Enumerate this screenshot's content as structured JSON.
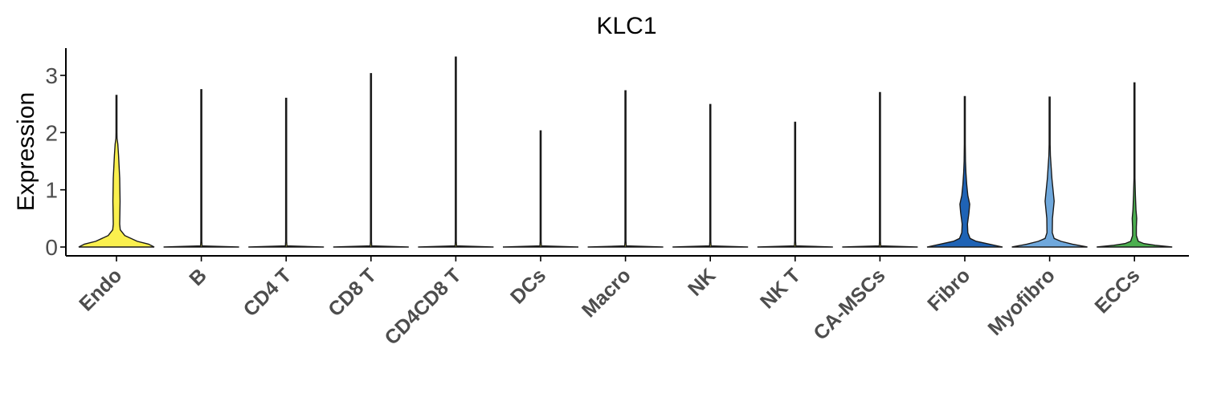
{
  "chart_data": {
    "type": "violin",
    "title": "KLC1",
    "xlabel": "",
    "ylabel": "Expression",
    "ylim": [
      -0.2,
      3.5
    ],
    "yticks": [
      0,
      1,
      2,
      3
    ],
    "grid": false,
    "legend": "none",
    "categories": [
      "Endo",
      "B",
      "CD4 T",
      "CD8 T",
      "CD4CD8 T",
      "DCs",
      "Macro",
      "NK",
      "NK T",
      "CA-MSCs",
      "Fibro",
      "Myofibro",
      "ECCs"
    ],
    "series": [
      {
        "category": "Endo",
        "color": "#FAF04E",
        "max": 2.65,
        "density": [
          [
            0,
            1.0
          ],
          [
            0.05,
            0.85
          ],
          [
            0.1,
            0.55
          ],
          [
            0.2,
            0.22
          ],
          [
            0.3,
            0.1
          ],
          [
            0.4,
            0.085
          ],
          [
            0.6,
            0.09
          ],
          [
            0.8,
            0.095
          ],
          [
            1.0,
            0.09
          ],
          [
            1.2,
            0.085
          ],
          [
            1.4,
            0.07
          ],
          [
            1.6,
            0.055
          ],
          [
            1.8,
            0.035
          ],
          [
            1.9,
            0.015
          ],
          [
            2.0,
            0.008
          ],
          [
            2.3,
            0.004
          ],
          [
            2.65,
            0
          ]
        ]
      },
      {
        "category": "B",
        "color": "#FAF04E",
        "max": 2.75,
        "density": [
          [
            0,
            1.0
          ],
          [
            0.02,
            0.02
          ],
          [
            0.1,
            0.004
          ],
          [
            2.75,
            0.002
          ]
        ]
      },
      {
        "category": "CD4 T",
        "color": "#FAF04E",
        "max": 2.6,
        "density": [
          [
            0,
            1.0
          ],
          [
            0.02,
            0.02
          ],
          [
            0.1,
            0.004
          ],
          [
            2.6,
            0.002
          ]
        ]
      },
      {
        "category": "CD8 T",
        "color": "#FAF04E",
        "max": 3.03,
        "density": [
          [
            0,
            1.0
          ],
          [
            0.02,
            0.02
          ],
          [
            0.1,
            0.004
          ],
          [
            3.03,
            0.002
          ]
        ]
      },
      {
        "category": "CD4CD8 T",
        "color": "#FAF04E",
        "max": 3.32,
        "density": [
          [
            0,
            1.0
          ],
          [
            0.02,
            0.02
          ],
          [
            0.1,
            0.004
          ],
          [
            3.32,
            0.002
          ]
        ]
      },
      {
        "category": "DCs",
        "color": "#FAF04E",
        "max": 2.03,
        "density": [
          [
            0,
            1.0
          ],
          [
            0.02,
            0.02
          ],
          [
            0.1,
            0.004
          ],
          [
            2.03,
            0.002
          ]
        ]
      },
      {
        "category": "Macro",
        "color": "#FAF04E",
        "max": 2.73,
        "density": [
          [
            0,
            1.0
          ],
          [
            0.02,
            0.02
          ],
          [
            0.1,
            0.004
          ],
          [
            2.73,
            0.002
          ]
        ]
      },
      {
        "category": "NK",
        "color": "#FAF04E",
        "max": 2.49,
        "density": [
          [
            0,
            1.0
          ],
          [
            0.02,
            0.02
          ],
          [
            0.1,
            0.004
          ],
          [
            2.49,
            0.002
          ]
        ]
      },
      {
        "category": "NK T",
        "color": "#FAF04E",
        "max": 2.18,
        "density": [
          [
            0,
            1.0
          ],
          [
            0.02,
            0.02
          ],
          [
            0.1,
            0.004
          ],
          [
            2.18,
            0.002
          ]
        ]
      },
      {
        "category": "CA-MSCs",
        "color": "#FAF04E",
        "max": 2.7,
        "density": [
          [
            0,
            1.0
          ],
          [
            0.02,
            0.02
          ],
          [
            0.1,
            0.004
          ],
          [
            2.7,
            0.002
          ]
        ]
      },
      {
        "category": "Fibro",
        "color": "#1F63B5",
        "max": 2.63,
        "density": [
          [
            0,
            1.0
          ],
          [
            0.05,
            0.65
          ],
          [
            0.1,
            0.3
          ],
          [
            0.15,
            0.14
          ],
          [
            0.25,
            0.08
          ],
          [
            0.4,
            0.07
          ],
          [
            0.6,
            0.11
          ],
          [
            0.75,
            0.13
          ],
          [
            0.9,
            0.08
          ],
          [
            1.1,
            0.05
          ],
          [
            1.3,
            0.03
          ],
          [
            1.5,
            0.018
          ],
          [
            1.8,
            0.008
          ],
          [
            2.2,
            0.004
          ],
          [
            2.63,
            0
          ]
        ]
      },
      {
        "category": "Myofibro",
        "color": "#6FA8DC",
        "max": 2.62,
        "density": [
          [
            0,
            1.0
          ],
          [
            0.05,
            0.6
          ],
          [
            0.1,
            0.3
          ],
          [
            0.15,
            0.12
          ],
          [
            0.25,
            0.07
          ],
          [
            0.5,
            0.075
          ],
          [
            0.8,
            0.12
          ],
          [
            1.0,
            0.09
          ],
          [
            1.2,
            0.06
          ],
          [
            1.4,
            0.04
          ],
          [
            1.6,
            0.02
          ],
          [
            1.8,
            0.01
          ],
          [
            2.2,
            0.004
          ],
          [
            2.62,
            0
          ]
        ]
      },
      {
        "category": "ECCs",
        "color": "#4CAF50",
        "max": 2.87,
        "density": [
          [
            0,
            1.0
          ],
          [
            0.03,
            0.55
          ],
          [
            0.06,
            0.25
          ],
          [
            0.1,
            0.1
          ],
          [
            0.2,
            0.05
          ],
          [
            0.35,
            0.05
          ],
          [
            0.5,
            0.06
          ],
          [
            0.65,
            0.04
          ],
          [
            0.9,
            0.025
          ],
          [
            1.2,
            0.012
          ],
          [
            1.6,
            0.006
          ],
          [
            2.2,
            0.003
          ],
          [
            2.87,
            0
          ]
        ]
      }
    ]
  }
}
